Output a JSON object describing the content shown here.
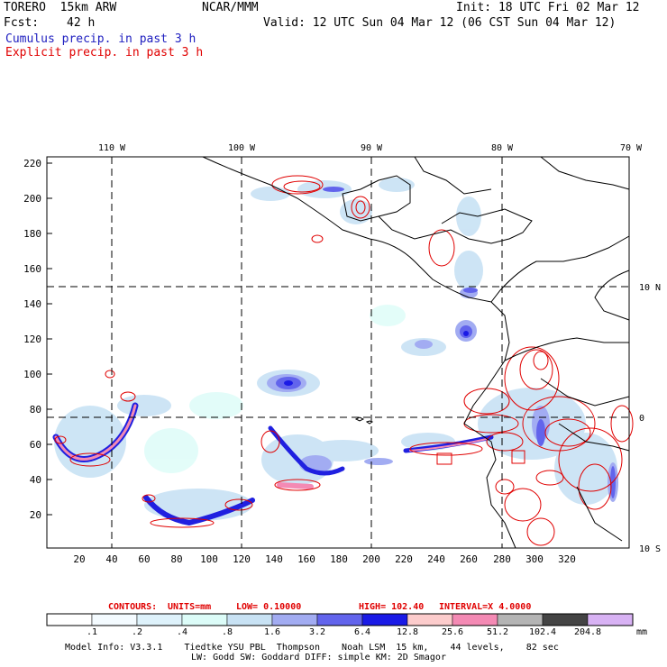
{
  "header": {
    "model": "TORERO  15km ARW",
    "org": "NCAR/MMM",
    "init": "Init: 18 UTC Fri 02 Mar 12",
    "fcst_label": "Fcst:",
    "fcst_value": "42 h",
    "valid": "Valid: 12 UTC Sun 04 Mar 12 (06 CST Sun 04 Mar 12)",
    "cumulus": "Cumulus precip. in past 3 h",
    "explicit": "Explicit precip. in past 3 h"
  },
  "map": {
    "lon_labels": [
      "110 W",
      "100 W",
      "90 W",
      "80 W",
      "70 W"
    ],
    "lat_labels": [
      "10 N",
      "0",
      "10 S"
    ],
    "y_ticks": [
      "220",
      "200",
      "180",
      "160",
      "140",
      "120",
      "100",
      "80",
      "60",
      "40",
      "20"
    ],
    "x_ticks": [
      "20",
      "40",
      "60",
      "80",
      "100",
      "120",
      "140",
      "160",
      "180",
      "200",
      "220",
      "240",
      "260",
      "280",
      "300",
      "320"
    ]
  },
  "contours": {
    "label": "CONTOURS:",
    "units": "UNITS=mm",
    "low": "LOW= 0.10000",
    "high": "HIGH=  102.40",
    "interval": "INTERVAL=X  4.0000"
  },
  "colorbar": {
    "unit": "mm",
    "labels": [
      ".1",
      ".2",
      ".4",
      ".8",
      "1.6",
      "3.2",
      "6.4",
      "12.8",
      "25.6",
      "51.2",
      "102.4",
      "204.8"
    ],
    "colors": [
      "#ffffff",
      "#f4fbff",
      "#def2fb",
      "#dcfcf8",
      "#c8e2f4",
      "#a2acf2",
      "#6264ec",
      "#1a1ae6",
      "#fccccc",
      "#f48ab4",
      "#b4b4b4",
      "#444444",
      "#d8b2f4"
    ]
  },
  "footer": {
    "line1": "Model Info: V3.3.1    Tiedtke YSU PBL  Thompson    Noah LSM  15 km,    44 levels,    82 sec",
    "line2": "LW: Godd SW: Goddard DIFF: simple KM: 2D Smagor"
  }
}
